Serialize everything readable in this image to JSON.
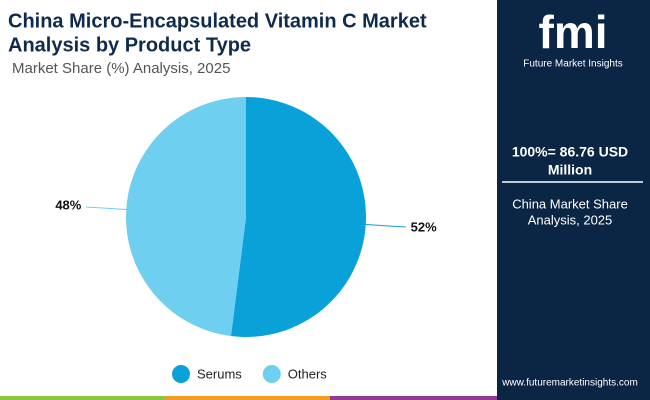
{
  "chart_data": {
    "type": "pie",
    "title": [
      "China Micro-Encapsulated Vitamin C Market",
      "Analysis by Product Type"
    ],
    "subtitle": "Market Share (%) Analysis, 2025",
    "categories": [
      "Serums",
      "Others"
    ],
    "values": [
      52,
      48
    ],
    "value_labels": [
      "52%",
      "48%"
    ],
    "colors": [
      "#0aa1d9",
      "#6fcff1"
    ]
  },
  "sidebar": {
    "logo": "fmi",
    "brand": "Future Market Insights",
    "total": [
      "100%= 86.76 USD",
      "Million"
    ],
    "note": [
      "China Market Share",
      "Analysis, 2025"
    ],
    "website": "www.futuremarketinsights.com"
  }
}
